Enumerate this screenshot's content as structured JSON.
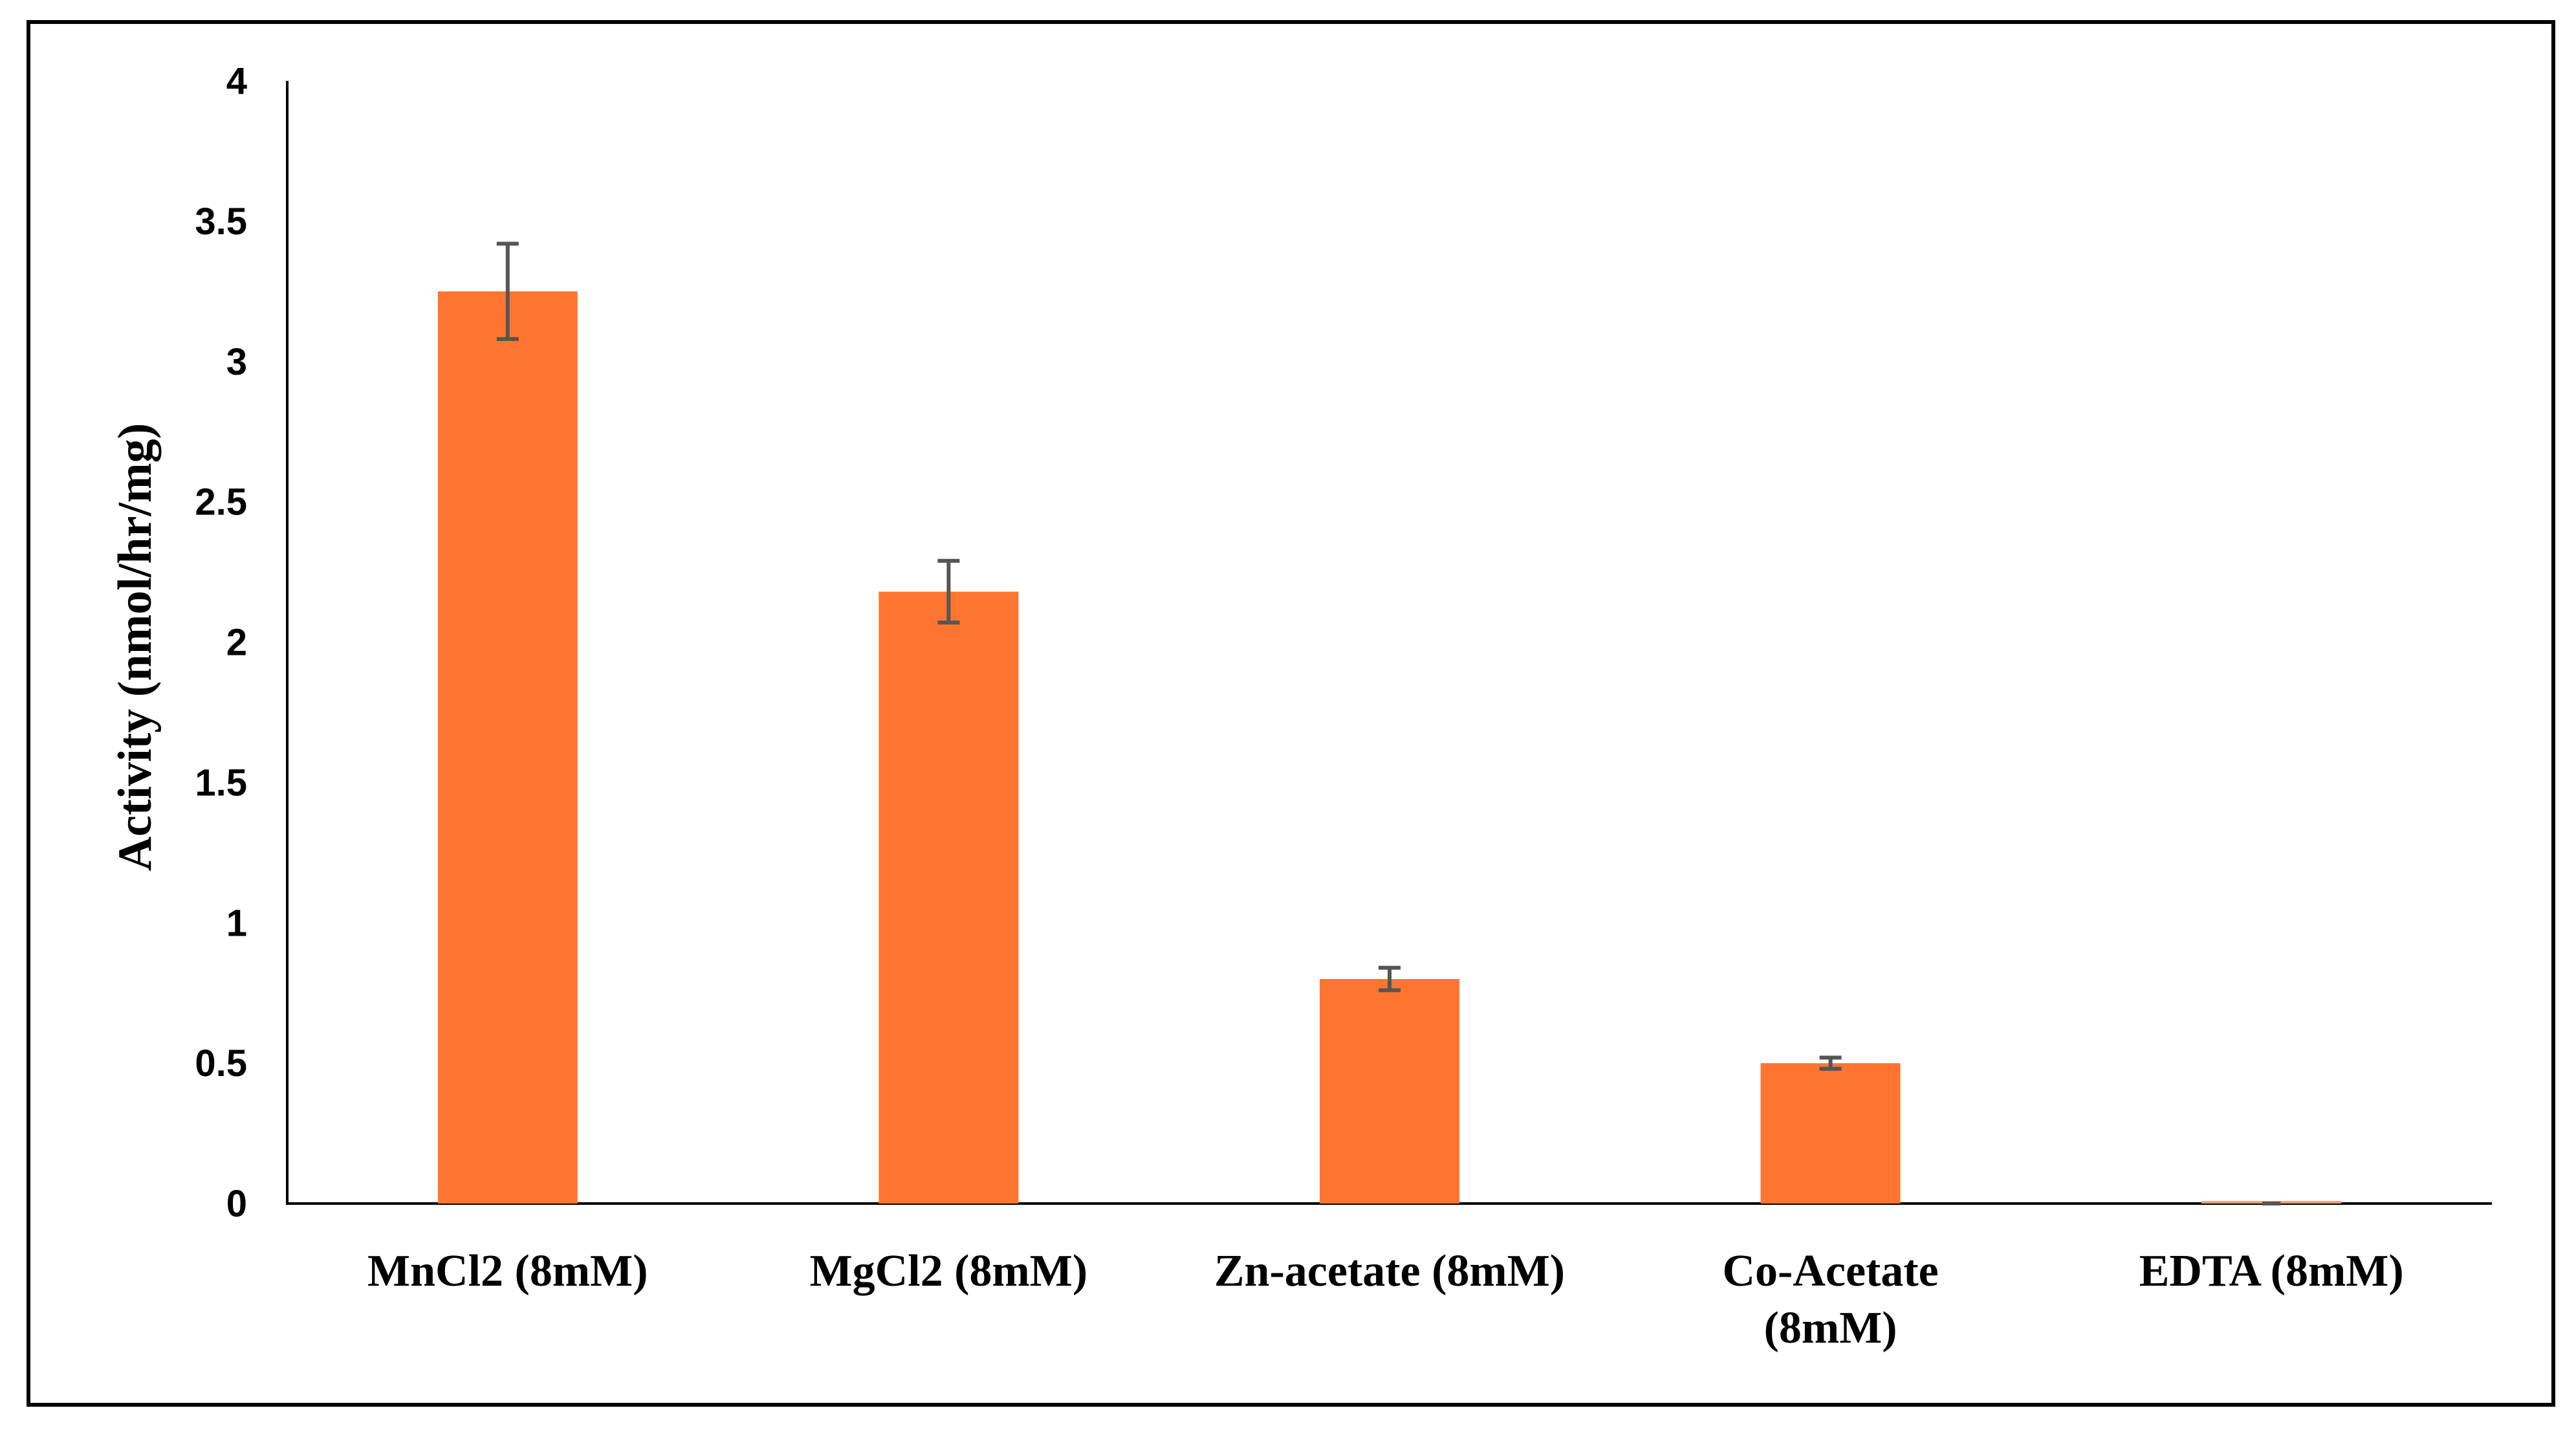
{
  "chart_data": {
    "type": "bar",
    "title": "",
    "xlabel": "",
    "ylabel": "Activity (nmol/hr/mg)",
    "categories": [
      [
        "MnCl2 (8mM)"
      ],
      [
        "MgCl2 (8mM)"
      ],
      [
        "Zn-acetate (8mM)"
      ],
      [
        "Co-Acetate",
        "(8mM)"
      ],
      [
        "EDTA (8mM)"
      ]
    ],
    "values": [
      3.25,
      2.18,
      0.8,
      0.5,
      0.0
    ],
    "errors": [
      0.17,
      0.11,
      0.04,
      0.02,
      0.0
    ],
    "ylim": [
      0,
      4
    ],
    "yticks": [
      "0",
      "0.5",
      "1",
      "1.5",
      "2",
      "2.5",
      "3",
      "3.5",
      "4"
    ],
    "grid": false,
    "legend": "none",
    "colors": {
      "bar": "#FF7530",
      "errorbar": "#555555",
      "axis": "#000000",
      "frame": "#000000"
    }
  }
}
